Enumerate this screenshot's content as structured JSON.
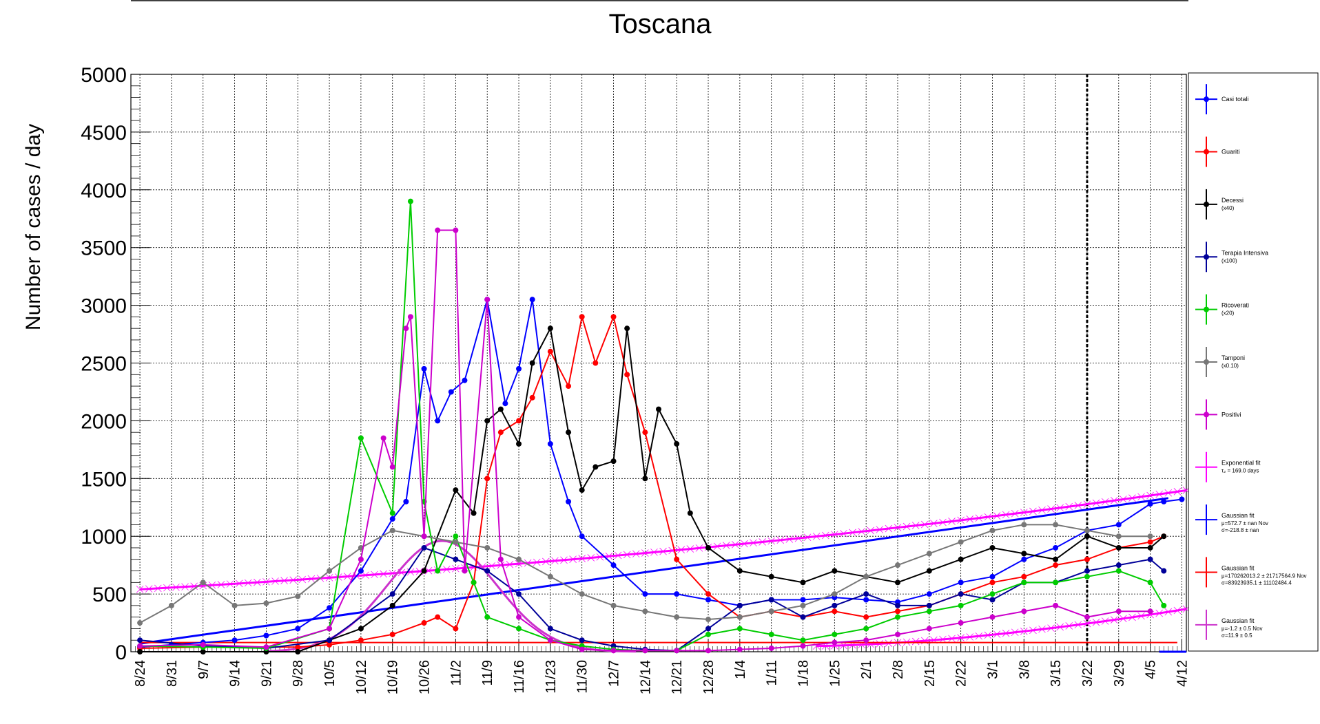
{
  "chart_data": {
    "type": "line",
    "title": "Toscana",
    "ylabel": "Number of cases / day",
    "xlabel": "",
    "ylim": [
      0,
      5000
    ],
    "y_ticks": [
      0,
      500,
      1000,
      1500,
      2000,
      2500,
      3000,
      3500,
      4000,
      4500,
      5000
    ],
    "x_range_days": [
      -2,
      232
    ],
    "x_ticks": [
      "8/24",
      "8/31",
      "9/7",
      "9/14",
      "9/21",
      "9/28",
      "10/5",
      "10/12",
      "10/19",
      "10/26",
      "11/2",
      "11/9",
      "11/16",
      "11/23",
      "11/30",
      "12/7",
      "12/14",
      "12/21",
      "12/28",
      "1/4",
      "1/11",
      "1/18",
      "1/25",
      "2/1",
      "2/8",
      "2/15",
      "2/22",
      "3/1",
      "3/8",
      "3/15",
      "3/22",
      "3/29",
      "4/5",
      "4/12"
    ],
    "grid": true,
    "marker_line_date": "3/22",
    "colors": {
      "casi": "#0000ff",
      "guariti": "#ff0000",
      "decessi": "#000000",
      "terapia": "#000099",
      "ricoverati": "#00cc00",
      "tamponi": "#777777",
      "positivi": "#cc00cc",
      "expfit": "#ff00ff",
      "gauss1": "#0000ff",
      "gauss2": "#ff0000",
      "gauss3": "#cc33cc"
    },
    "series": [
      {
        "name": "Casi totali",
        "key": "casi",
        "x": [
          0,
          7,
          14,
          21,
          28,
          35,
          42,
          49,
          56,
          59,
          63,
          66,
          69,
          72,
          77,
          81,
          84,
          87,
          91,
          95,
          98,
          105,
          112,
          119,
          126,
          133,
          140,
          147,
          154,
          161,
          168,
          175,
          182,
          189,
          196,
          203,
          210,
          217,
          224,
          227,
          231
        ],
        "y": [
          40,
          60,
          80,
          100,
          140,
          200,
          380,
          700,
          1150,
          1300,
          2450,
          2000,
          2250,
          2350,
          3050,
          2150,
          2450,
          3050,
          1800,
          1300,
          1000,
          750,
          500,
          500,
          450,
          400,
          450,
          450,
          470,
          450,
          430,
          500,
          600,
          650,
          800,
          900,
          1050,
          1100,
          1280,
          1300,
          1320
        ]
      },
      {
        "name": "Guariti",
        "key": "guariti",
        "x": [
          0,
          14,
          28,
          35,
          42,
          49,
          56,
          63,
          66,
          70,
          74,
          77,
          80,
          84,
          87,
          91,
          95,
          98,
          101,
          105,
          108,
          112,
          119,
          126,
          133,
          140,
          147,
          154,
          161,
          168,
          175,
          182,
          189,
          196,
          203,
          210,
          217,
          224,
          227
        ],
        "y": [
          30,
          40,
          40,
          40,
          60,
          100,
          150,
          250,
          300,
          200,
          600,
          1500,
          1900,
          2000,
          2200,
          2600,
          2300,
          2900,
          2500,
          2900,
          2400,
          1900,
          800,
          500,
          300,
          350,
          300,
          350,
          300,
          350,
          400,
          500,
          600,
          650,
          750,
          800,
          900,
          950,
          1000
        ]
      },
      {
        "name": "Decessi",
        "legend_sub": "(x40)",
        "key": "decessi",
        "x": [
          0,
          14,
          28,
          35,
          42,
          49,
          56,
          63,
          70,
          74,
          77,
          80,
          84,
          87,
          91,
          95,
          98,
          101,
          105,
          108,
          112,
          115,
          119,
          122,
          126,
          133,
          140,
          147,
          154,
          161,
          168,
          175,
          182,
          189,
          196,
          203,
          210,
          217,
          224,
          227
        ],
        "y": [
          0,
          0,
          0,
          0,
          100,
          200,
          400,
          700,
          1400,
          1200,
          2000,
          2100,
          1800,
          2500,
          2800,
          1900,
          1400,
          1600,
          1650,
          2800,
          1500,
          2100,
          1800,
          1200,
          900,
          700,
          650,
          600,
          700,
          650,
          600,
          700,
          800,
          900,
          850,
          800,
          1000,
          900,
          900,
          1000
        ]
      },
      {
        "name": "Terapia Intensiva",
        "legend_sub": "(x100)",
        "key": "terapia",
        "x": [
          0,
          14,
          28,
          42,
          56,
          63,
          70,
          77,
          84,
          91,
          98,
          105,
          112,
          119,
          126,
          133,
          140,
          147,
          154,
          161,
          168,
          175,
          182,
          189,
          196,
          203,
          210,
          217,
          224,
          227
        ],
        "y": [
          100,
          50,
          30,
          100,
          500,
          900,
          800,
          700,
          500,
          200,
          100,
          50,
          20,
          10,
          200,
          400,
          450,
          300,
          400,
          500,
          400,
          400,
          500,
          450,
          600,
          600,
          700,
          750,
          800,
          700
        ]
      },
      {
        "name": "Ricoverati",
        "legend_sub": "(x20)",
        "key": "ricoverati",
        "x": [
          0,
          14,
          28,
          42,
          49,
          56,
          60,
          63,
          66,
          70,
          74,
          77,
          84,
          91,
          98,
          105,
          112,
          119,
          126,
          133,
          140,
          147,
          154,
          161,
          168,
          175,
          182,
          189,
          196,
          203,
          210,
          217,
          224,
          227
        ],
        "y": [
          50,
          40,
          30,
          200,
          1850,
          1200,
          3900,
          1300,
          700,
          1000,
          600,
          300,
          200,
          100,
          50,
          20,
          10,
          10,
          150,
          200,
          150,
          100,
          150,
          200,
          300,
          350,
          400,
          500,
          600,
          600,
          650,
          700,
          600,
          400
        ]
      },
      {
        "name": "Tamponi",
        "legend_sub": "(x0.10)",
        "key": "tamponi",
        "x": [
          0,
          7,
          14,
          21,
          28,
          35,
          42,
          49,
          56,
          63,
          70,
          77,
          84,
          91,
          98,
          105,
          112,
          119,
          126,
          133,
          140,
          147,
          154,
          161,
          168,
          175,
          182,
          189,
          196,
          203,
          210,
          217,
          224
        ],
        "y": [
          250,
          400,
          600,
          400,
          420,
          480,
          700,
          900,
          1050,
          1000,
          950,
          900,
          800,
          650,
          500,
          400,
          350,
          300,
          280,
          300,
          350,
          400,
          500,
          650,
          750,
          850,
          950,
          1050,
          1100,
          1100,
          1050,
          1000,
          1000
        ]
      },
      {
        "name": "Positivi",
        "key": "positivi",
        "x": [
          0,
          14,
          28,
          42,
          49,
          54,
          56,
          59,
          60,
          63,
          66,
          70,
          72,
          77,
          80,
          84,
          91,
          98,
          105,
          112,
          119,
          126,
          133,
          140,
          147,
          154,
          161,
          168,
          175,
          182,
          189,
          196,
          203,
          210,
          217,
          224
        ],
        "y": [
          50,
          60,
          40,
          200,
          800,
          1850,
          1600,
          2800,
          2900,
          1000,
          3650,
          3650,
          700,
          3050,
          800,
          300,
          100,
          20,
          10,
          10,
          10,
          10,
          20,
          30,
          50,
          80,
          100,
          150,
          200,
          250,
          300,
          350,
          400,
          300,
          350,
          350
        ]
      },
      {
        "name": "Exponential fit",
        "legend_sub": "τ₂ = 169.0 days",
        "key": "expfit",
        "fit": "exp",
        "a": 540,
        "b": 0.0041
      },
      {
        "name": "Gaussian fit",
        "legend_sub": "μ=572.7 ± nan Nov",
        "legend_sub2": "σ=-218.8 ± nan",
        "key": "gauss1",
        "fit": "line",
        "x0": 0,
        "y0": 70,
        "x1": 228,
        "y1": 1330
      },
      {
        "name": "Gaussian fit",
        "legend_sub": "μ=170262013.2 ± 21717564.9 Nov",
        "legend_sub2": "σ=83923935.1 ± 11102484.4",
        "key": "gauss2",
        "fit": "const",
        "y": 80
      },
      {
        "name": "Gaussian fit",
        "legend_sub": "μ=-1.2 ± 0.5 Nov",
        "legend_sub2": "σ=11.9 ± 0.5",
        "key": "gauss3",
        "fit": "gauss",
        "amp": 960,
        "mu": 67,
        "sigma": 12
      }
    ]
  }
}
